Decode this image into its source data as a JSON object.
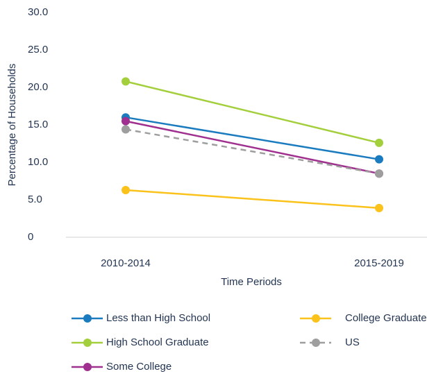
{
  "chart_data": {
    "type": "line",
    "x_label": "Time Periods",
    "y_label": "Percentage of Households",
    "categories": [
      "2010-2014",
      "2015-2019"
    ],
    "series": [
      {
        "name": "Less than High School",
        "color": "#1a7bbf",
        "values": [
          16.0,
          10.4
        ]
      },
      {
        "name": "High School Graduate",
        "color": "#a4cf3c",
        "values": [
          20.8,
          12.6
        ]
      },
      {
        "name": "Some College",
        "color": "#a0308f",
        "values": [
          15.5,
          8.5
        ]
      },
      {
        "name": "College Graduate",
        "color": "#fbc21b",
        "values": [
          6.3,
          3.9
        ]
      },
      {
        "name": "US",
        "color": "#9e9e9e",
        "values": [
          14.4,
          8.5
        ],
        "dashed": true
      }
    ],
    "ylim": [
      0,
      30
    ],
    "yticks": [
      0,
      {
        "value": 5,
        "label": "5.0"
      },
      {
        "value": 10,
        "label": "10.0"
      },
      {
        "value": 15,
        "label": "15.0"
      },
      {
        "value": 20,
        "label": "20.0"
      },
      {
        "value": 25,
        "label": "25.0"
      },
      {
        "value": 30,
        "label": "30.0"
      }
    ],
    "legend": "bottom"
  }
}
